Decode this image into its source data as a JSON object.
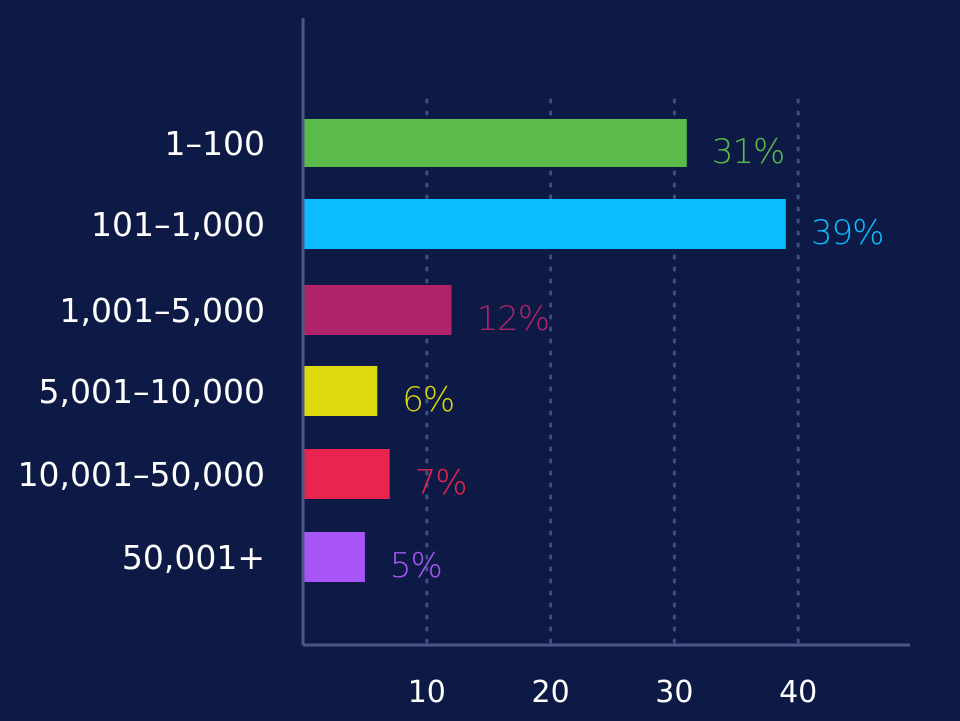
{
  "chart_data": {
    "type": "bar",
    "orientation": "horizontal",
    "categories": [
      "1–100",
      "101–1,000",
      "1,001–5,000",
      "5,001–10,000",
      "10,001–50,000",
      "50,001+"
    ],
    "values": [
      31,
      39,
      12,
      6,
      7,
      5
    ],
    "value_labels": [
      "31%",
      "39%",
      "12%",
      "6%",
      "7%",
      "5%"
    ],
    "colors": [
      "#5bbb4b",
      "#0bbcff",
      "#b0226a",
      "#dcda0c",
      "#e8244f",
      "#a855f7"
    ],
    "x_ticks": [
      10,
      20,
      30,
      40
    ],
    "tick_labels": [
      "10",
      "20",
      "30",
      "40"
    ],
    "title": "",
    "xlabel": "",
    "ylabel": "",
    "grid": "vertical dotted",
    "background": "#0d1a45"
  }
}
